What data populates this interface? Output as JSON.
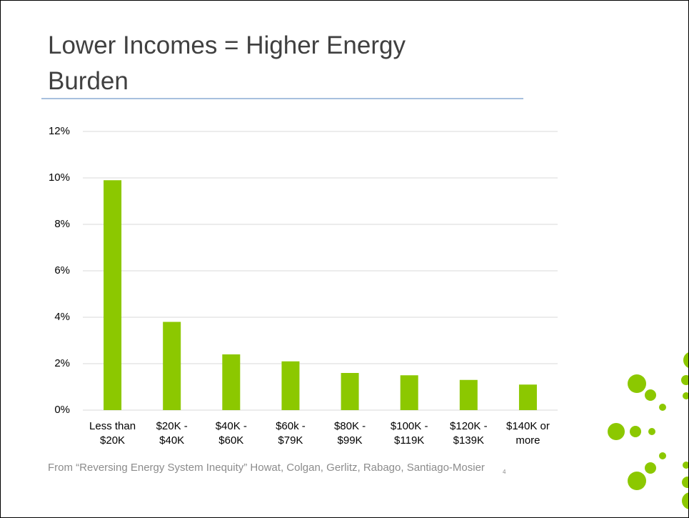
{
  "chart_data": {
    "type": "bar",
    "title": "Lower Incomes = Higher Energy Burden",
    "categories": [
      "Less than $20K",
      "$20K - $40K",
      "$40K - $60K",
      "$60k - $79K",
      "$80K - $99K",
      "$100K - $119K",
      "$120K - $139K",
      "$140K or more"
    ],
    "values": [
      9.9,
      3.8,
      2.4,
      2.1,
      1.6,
      1.5,
      1.3,
      1.1
    ],
    "color": "#8cc800",
    "ylim": [
      0,
      12
    ],
    "yticks": [
      {
        "value": 0,
        "label": "0%"
      },
      {
        "value": 2,
        "label": "2%"
      },
      {
        "value": 4,
        "label": "4%"
      },
      {
        "value": 6,
        "label": "6%"
      },
      {
        "value": 8,
        "label": "8%"
      },
      {
        "value": 10,
        "label": "10%"
      },
      {
        "value": 12,
        "label": "12%"
      }
    ],
    "grid": true
  },
  "source": "From “Reversing Energy System Inequity”  Howat, Colgan, Gerlitz, Rabago, Santiago-Mosier",
  "page_number": "4"
}
